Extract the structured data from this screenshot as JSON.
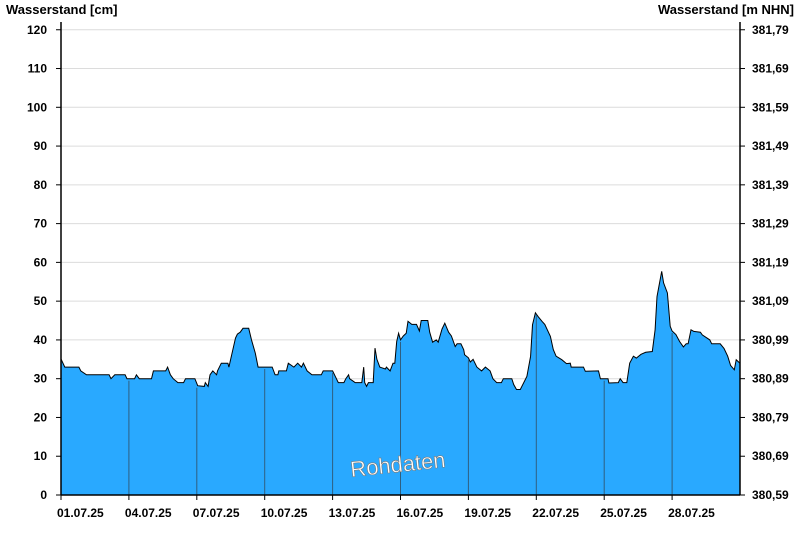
{
  "chart_data": {
    "type": "area",
    "ylabel": "Wasserstand [cm]",
    "y2label": "Wasserstand [m NHN]",
    "ylim": [
      0,
      122
    ],
    "yticks": [
      0,
      10,
      20,
      30,
      40,
      50,
      60,
      70,
      80,
      90,
      100,
      110,
      120
    ],
    "y2ticks": [
      "380,59",
      "380,69",
      "380,79",
      "380,89",
      "380,99",
      "381,09",
      "381,19",
      "381,29",
      "381,39",
      "381,49",
      "381,59",
      "381,69",
      "381,79"
    ],
    "xlim": [
      "2025-07-01T00:00",
      "2025-07-31T00:00"
    ],
    "xticks": [
      {
        "date": "2025-07-01T00:00",
        "label": "01.07.25"
      },
      {
        "date": "2025-07-04T00:00",
        "label": "04.07.25"
      },
      {
        "date": "2025-07-07T00:00",
        "label": "07.07.25"
      },
      {
        "date": "2025-07-10T00:00",
        "label": "10.07.25"
      },
      {
        "date": "2025-07-13T00:00",
        "label": "13.07.25"
      },
      {
        "date": "2025-07-16T00:00",
        "label": "16.07.25"
      },
      {
        "date": "2025-07-19T00:00",
        "label": "19.07.25"
      },
      {
        "date": "2025-07-22T00:00",
        "label": "22.07.25"
      },
      {
        "date": "2025-07-25T00:00",
        "label": "25.07.25"
      },
      {
        "date": "2025-07-28T00:00",
        "label": "28.07.25"
      }
    ],
    "grid": true,
    "annotation": "Rohdaten",
    "colors": {
      "fill": "#29a9ff",
      "line": "#000000",
      "grid": "#dcdcdc",
      "day_lines": "#2f5f80"
    },
    "series": [
      {
        "points": [
          [
            "2025-07-01T00:00",
            35.1
          ],
          [
            "2025-07-01T04:00",
            33
          ],
          [
            "2025-07-01T19:00",
            33
          ],
          [
            "2025-07-01T21:00",
            32
          ],
          [
            "2025-07-02T03:00",
            31
          ],
          [
            "2025-07-03T03:00",
            31
          ],
          [
            "2025-07-03T05:00",
            30
          ],
          [
            "2025-07-03T09:00",
            31
          ],
          [
            "2025-07-03T20:00",
            31
          ],
          [
            "2025-07-03T22:00",
            30
          ],
          [
            "2025-07-04T06:00",
            30
          ],
          [
            "2025-07-04T08:00",
            31
          ],
          [
            "2025-07-04T11:00",
            30
          ],
          [
            "2025-07-05T00:00",
            30
          ],
          [
            "2025-07-05T02:00",
            32
          ],
          [
            "2025-07-05T15:00",
            32
          ],
          [
            "2025-07-05T17:00",
            33
          ],
          [
            "2025-07-05T20:00",
            31
          ],
          [
            "2025-07-05T23:00",
            30
          ],
          [
            "2025-07-06T04:00",
            29
          ],
          [
            "2025-07-06T10:00",
            29
          ],
          [
            "2025-07-06T12:00",
            30
          ],
          [
            "2025-07-06T22:00",
            30
          ],
          [
            "2025-07-07T01:00",
            28.2
          ],
          [
            "2025-07-07T08:00",
            28
          ],
          [
            "2025-07-07T09:00",
            29
          ],
          [
            "2025-07-07T12:00",
            28
          ],
          [
            "2025-07-07T14:00",
            31
          ],
          [
            "2025-07-07T17:00",
            32
          ],
          [
            "2025-07-07T21:00",
            31
          ],
          [
            "2025-07-07T22:00",
            32
          ],
          [
            "2025-07-08T02:00",
            34
          ],
          [
            "2025-07-08T09:00",
            34
          ],
          [
            "2025-07-08T10:00",
            33
          ],
          [
            "2025-07-08T13:00",
            36.2
          ],
          [
            "2025-07-08T17:00",
            40.5
          ],
          [
            "2025-07-08T19:00",
            41.5
          ],
          [
            "2025-07-08T22:00",
            42
          ],
          [
            "2025-07-09T01:00",
            43
          ],
          [
            "2025-07-09T07:00",
            43
          ],
          [
            "2025-07-09T10:00",
            40
          ],
          [
            "2025-07-09T14:00",
            36.6
          ],
          [
            "2025-07-09T17:00",
            33
          ],
          [
            "2025-07-10T08:00",
            33
          ],
          [
            "2025-07-10T11:00",
            31
          ],
          [
            "2025-07-10T14:00",
            31
          ],
          [
            "2025-07-10T15:00",
            32
          ],
          [
            "2025-07-10T23:00",
            32
          ],
          [
            "2025-07-11T01:00",
            34
          ],
          [
            "2025-07-11T07:00",
            33
          ],
          [
            "2025-07-11T11:00",
            34
          ],
          [
            "2025-07-11T15:00",
            33
          ],
          [
            "2025-07-11T17:00",
            34
          ],
          [
            "2025-07-11T21:00",
            32
          ],
          [
            "2025-07-12T02:00",
            31
          ],
          [
            "2025-07-12T12:00",
            31
          ],
          [
            "2025-07-12T14:00",
            32
          ],
          [
            "2025-07-13T00:00",
            32
          ],
          [
            "2025-07-13T04:00",
            30
          ],
          [
            "2025-07-13T06:00",
            29
          ],
          [
            "2025-07-13T12:00",
            29
          ],
          [
            "2025-07-13T14:00",
            30
          ],
          [
            "2025-07-13T17:00",
            31
          ],
          [
            "2025-07-13T18:00",
            30
          ],
          [
            "2025-07-14T00:00",
            29
          ],
          [
            "2025-07-14T07:00",
            29
          ],
          [
            "2025-07-14T09:00",
            33
          ],
          [
            "2025-07-14T10:00",
            29
          ],
          [
            "2025-07-14T12:00",
            28
          ],
          [
            "2025-07-14T14:00",
            29
          ],
          [
            "2025-07-14T19:00",
            29
          ],
          [
            "2025-07-14T21:00",
            37.9
          ],
          [
            "2025-07-14T23:00",
            35
          ],
          [
            "2025-07-15T02:00",
            33
          ],
          [
            "2025-07-15T08:00",
            32.5
          ],
          [
            "2025-07-15T09:00",
            33
          ],
          [
            "2025-07-15T13:00",
            32
          ],
          [
            "2025-07-15T16:00",
            34
          ],
          [
            "2025-07-15T18:00",
            34
          ],
          [
            "2025-07-15T20:00",
            39.6
          ],
          [
            "2025-07-15T22:00",
            41.7
          ],
          [
            "2025-07-16T00:00",
            40
          ],
          [
            "2025-07-16T03:00",
            41
          ],
          [
            "2025-07-16T06:00",
            41.7
          ],
          [
            "2025-07-16T08:00",
            44.8
          ],
          [
            "2025-07-16T12:00",
            44
          ],
          [
            "2025-07-16T17:00",
            44
          ],
          [
            "2025-07-16T20:00",
            42.3
          ],
          [
            "2025-07-16T22:00",
            45
          ],
          [
            "2025-07-17T05:00",
            45
          ],
          [
            "2025-07-17T07:00",
            42
          ],
          [
            "2025-07-17T10:00",
            39.4
          ],
          [
            "2025-07-17T14:00",
            40
          ],
          [
            "2025-07-17T16:00",
            39.4
          ],
          [
            "2025-07-17T20:00",
            42.8
          ],
          [
            "2025-07-17T23:00",
            44.3
          ],
          [
            "2025-07-18T03:00",
            42
          ],
          [
            "2025-07-18T06:00",
            41
          ],
          [
            "2025-07-18T10:00",
            38.3
          ],
          [
            "2025-07-18T12:00",
            39
          ],
          [
            "2025-07-18T16:00",
            39
          ],
          [
            "2025-07-18T19:00",
            37.5
          ],
          [
            "2025-07-18T20:00",
            36.2
          ],
          [
            "2025-07-19T00:00",
            35.4
          ],
          [
            "2025-07-19T02:00",
            34.3
          ],
          [
            "2025-07-19T05:00",
            35
          ],
          [
            "2025-07-19T09:00",
            33
          ],
          [
            "2025-07-19T14:00",
            32
          ],
          [
            "2025-07-19T18:00",
            33
          ],
          [
            "2025-07-19T23:00",
            32
          ],
          [
            "2025-07-20T02:00",
            30
          ],
          [
            "2025-07-20T06:00",
            29
          ],
          [
            "2025-07-20T11:00",
            29
          ],
          [
            "2025-07-20T13:00",
            30
          ],
          [
            "2025-07-20T22:00",
            30
          ],
          [
            "2025-07-21T00:00",
            28.5
          ],
          [
            "2025-07-21T03:00",
            27.2
          ],
          [
            "2025-07-21T07:00",
            27.2
          ],
          [
            "2025-07-21T09:00",
            28.2
          ],
          [
            "2025-07-21T14:00",
            30.6
          ],
          [
            "2025-07-21T18:00",
            35.8
          ],
          [
            "2025-07-21T20:00",
            43.9
          ],
          [
            "2025-07-21T23:00",
            47
          ],
          [
            "2025-07-22T02:00",
            46
          ],
          [
            "2025-07-22T06:00",
            44.8
          ],
          [
            "2025-07-22T09:00",
            44
          ],
          [
            "2025-07-22T15:00",
            40.9
          ],
          [
            "2025-07-22T18:00",
            37.5
          ],
          [
            "2025-07-22T21:00",
            35.8
          ],
          [
            "2025-07-23T03:00",
            34.9
          ],
          [
            "2025-07-23T08:00",
            33.9
          ],
          [
            "2025-07-23T12:00",
            34
          ],
          [
            "2025-07-23T13:00",
            33
          ],
          [
            "2025-07-24T02:00",
            33
          ],
          [
            "2025-07-24T04:00",
            31.9
          ],
          [
            "2025-07-24T18:00",
            32
          ],
          [
            "2025-07-24T20:00",
            30
          ],
          [
            "2025-07-25T04:00",
            30
          ],
          [
            "2025-07-25T05:00",
            28.9
          ],
          [
            "2025-07-25T15:00",
            29
          ],
          [
            "2025-07-25T17:00",
            30
          ],
          [
            "2025-07-25T20:00",
            29
          ],
          [
            "2025-07-26T00:00",
            29
          ],
          [
            "2025-07-26T03:00",
            34
          ],
          [
            "2025-07-26T07:00",
            35.8
          ],
          [
            "2025-07-26T10:00",
            35.3
          ],
          [
            "2025-07-26T15:00",
            36.3
          ],
          [
            "2025-07-26T20:00",
            36.8
          ],
          [
            "2025-07-27T03:00",
            37
          ],
          [
            "2025-07-27T06:00",
            42.6
          ],
          [
            "2025-07-27T08:00",
            51.2
          ],
          [
            "2025-07-27T10:00",
            53.8
          ],
          [
            "2025-07-27T13:00",
            57.7
          ],
          [
            "2025-07-27T15:00",
            54.7
          ],
          [
            "2025-07-27T19:00",
            52.1
          ],
          [
            "2025-07-27T22:00",
            43.5
          ],
          [
            "2025-07-28T00:00",
            42.3
          ],
          [
            "2025-07-28T04:00",
            41.4
          ],
          [
            "2025-07-28T08:00",
            39.6
          ],
          [
            "2025-07-28T12:00",
            38.2
          ],
          [
            "2025-07-28T15:00",
            39
          ],
          [
            "2025-07-28T17:00",
            39
          ],
          [
            "2025-07-28T20:00",
            42.6
          ],
          [
            "2025-07-28T23:00",
            42.2
          ],
          [
            "2025-07-29T06:00",
            42
          ],
          [
            "2025-07-29T08:00",
            41.3
          ],
          [
            "2025-07-29T16:00",
            40
          ],
          [
            "2025-07-29T18:00",
            39
          ],
          [
            "2025-07-30T03:00",
            39
          ],
          [
            "2025-07-30T07:00",
            37.8
          ],
          [
            "2025-07-30T11:00",
            35.8
          ],
          [
            "2025-07-30T14:00",
            33.4
          ],
          [
            "2025-07-30T18:00",
            32.3
          ],
          [
            "2025-07-30T20:00",
            34.9
          ],
          [
            "2025-07-31T00:00",
            34
          ]
        ]
      }
    ]
  }
}
